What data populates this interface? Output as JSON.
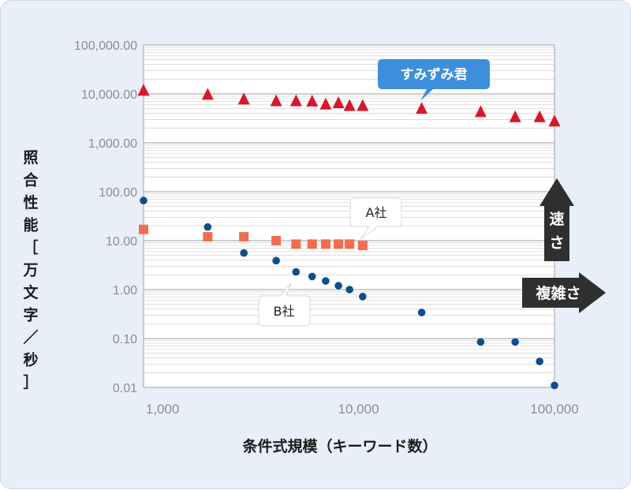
{
  "chart_data": {
    "type": "scatter",
    "x_scale": "log",
    "y_scale": "log",
    "xlim": [
      800,
      100000
    ],
    "ylim": [
      0.01,
      100000
    ],
    "x_ticks": [
      "1,000",
      "10,000",
      "100,000"
    ],
    "y_ticks": [
      "100,000.00",
      "10,000.00",
      "1,000.00",
      "100.00",
      "10.00",
      "1.00",
      "0.10",
      "0.01"
    ],
    "xlabel": "条件式規模（キーワード数）",
    "ylabel_chars": [
      "照",
      "合",
      "性",
      "能",
      "［",
      "万",
      "文",
      "字",
      "／",
      "秒",
      "］"
    ],
    "grid": true,
    "series": [
      {
        "name": "すみずみ君",
        "marker": "triangle",
        "color": "#d7182a",
        "x": [
          800,
          1700,
          2600,
          3800,
          4800,
          5800,
          6800,
          7900,
          9000,
          10500,
          21000,
          42000,
          63000,
          84000,
          100000
        ],
        "y": [
          11500,
          9500,
          7600,
          7000,
          7000,
          6900,
          6000,
          6400,
          5600,
          5600,
          4900,
          4200,
          3300,
          3300,
          2700
        ]
      },
      {
        "name": "A社",
        "marker": "square",
        "color": "#f26c4f",
        "x": [
          800,
          1700,
          2600,
          3800,
          4800,
          5800,
          6800,
          7900,
          9000,
          10500
        ],
        "y": [
          17,
          12,
          12,
          10,
          8.5,
          8.5,
          8.5,
          8.5,
          8.5,
          8
        ]
      },
      {
        "name": "B社",
        "marker": "circle",
        "color": "#0e4e8c",
        "x": [
          800,
          1700,
          2600,
          3800,
          4800,
          5800,
          6800,
          7900,
          9000,
          10500,
          21000,
          42000,
          63000,
          84000,
          100000
        ],
        "y": [
          66,
          19,
          5.6,
          3.9,
          2.3,
          1.85,
          1.5,
          1.2,
          1.0,
          0.72,
          0.34,
          0.085,
          0.085,
          0.034,
          0.011
        ]
      }
    ],
    "arrows": {
      "up": "速さ",
      "right": "複雑さ"
    }
  }
}
